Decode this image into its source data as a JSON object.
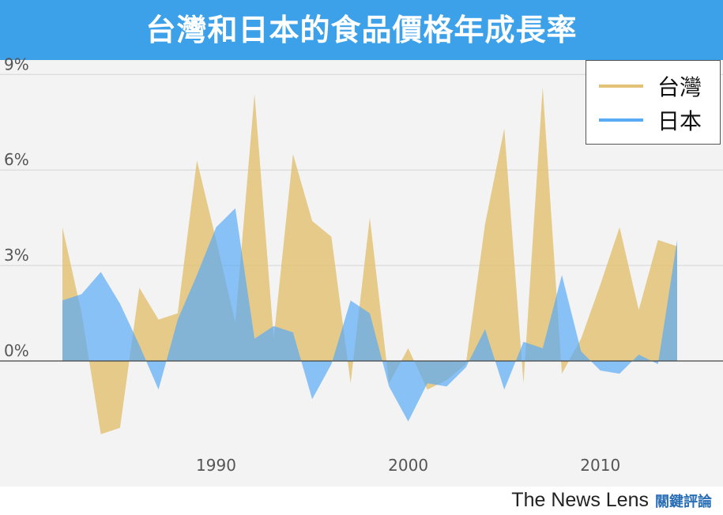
{
  "title": "台灣和日本的食品價格年成長率",
  "brand": {
    "name": "The News Lens",
    "name_cn": "關鍵評論"
  },
  "colors": {
    "taiwan": "#e2c276",
    "japan": "#5aabf6",
    "header": "#3da1ea"
  },
  "chart_data": {
    "type": "area",
    "title": "台灣和日本的食品價格年成長率",
    "xlabel": "",
    "ylabel": "",
    "x": [
      1982,
      1983,
      1984,
      1985,
      1986,
      1987,
      1988,
      1989,
      1990,
      1991,
      1992,
      1993,
      1994,
      1995,
      1996,
      1997,
      1998,
      1999,
      2000,
      2001,
      2002,
      2003,
      2004,
      2005,
      2006,
      2007,
      2008,
      2009,
      2010,
      2011,
      2012,
      2013,
      2014
    ],
    "x_ticks": [
      "1990",
      "2000",
      "2010"
    ],
    "y_ticks": [
      "0%",
      "3%",
      "6%",
      "9%"
    ],
    "ylim": [
      -3.2,
      9.0
    ],
    "grid": true,
    "legend_position": "top-right",
    "series": [
      {
        "name": "台灣",
        "values": [
          4.2,
          1.5,
          -2.3,
          -2.1,
          2.3,
          1.3,
          1.5,
          6.3,
          3.8,
          1.2,
          8.4,
          0.7,
          6.5,
          4.4,
          3.9,
          -0.7,
          4.5,
          -0.7,
          0.4,
          -0.9,
          -0.6,
          -0.1,
          4.3,
          7.3,
          -0.7,
          8.6,
          -0.4,
          0.7,
          2.4,
          4.2,
          1.6,
          3.8,
          3.6
        ]
      },
      {
        "name": "日本",
        "values": [
          1.9,
          2.1,
          2.8,
          1.8,
          0.5,
          -0.9,
          1.3,
          2.7,
          4.2,
          4.8,
          0.7,
          1.1,
          0.9,
          -1.2,
          -0.1,
          1.9,
          1.5,
          -0.8,
          -1.9,
          -0.7,
          -0.8,
          -0.2,
          1.0,
          -0.9,
          0.6,
          0.4,
          2.7,
          0.3,
          -0.3,
          -0.4,
          0.2,
          -0.1,
          3.8
        ]
      }
    ]
  }
}
